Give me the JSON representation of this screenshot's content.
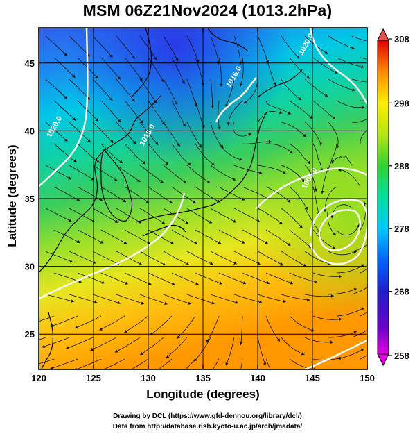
{
  "title": "MSM 06Z21Nov2024 (1013.2hPa)",
  "xlabel": "Longitude (degrees)",
  "ylabel": "Latitude  (degrees)",
  "credit_line1": "Drawing by DCL (https://www.gfd-dennou.org/library/dcl/)",
  "credit_line2": "Data from http://database.rish.kyoto-u.ac.jp/arch/jmadata/",
  "chart_data": {
    "type": "heatmap",
    "variable": "temperature with streamlines and isobars",
    "x_ticks": [
      120,
      125,
      130,
      135,
      140,
      145,
      150
    ],
    "y_ticks": [
      25,
      30,
      35,
      40,
      45
    ],
    "xlim": [
      120,
      150
    ],
    "ylim": [
      22.4,
      47.6
    ],
    "colorbar": {
      "ticks": [
        258,
        268,
        278,
        288,
        298,
        308
      ],
      "range": [
        258,
        308
      ],
      "colors": [
        "#e100e1",
        "#1e00c8",
        "#0050ff",
        "#00c8ff",
        "#00e0a0",
        "#32d232",
        "#b4e614",
        "#ffee00",
        "#ffa000",
        "#ff4a00",
        "#e00000"
      ]
    },
    "isobar_labels": [
      {
        "text": "1016.0",
        "lon": 138.0,
        "lat": 43.9
      },
      {
        "text": "1020.0",
        "lon": 121.6,
        "lat": 40.2
      },
      {
        "text": "1020.0",
        "lon": 144.6,
        "lat": 46.3
      },
      {
        "text": "1016.0",
        "lon": 130.1,
        "lat": 39.6
      },
      {
        "text": "1008.0",
        "lon": 144.9,
        "lat": 36.4
      }
    ],
    "grid": true
  }
}
